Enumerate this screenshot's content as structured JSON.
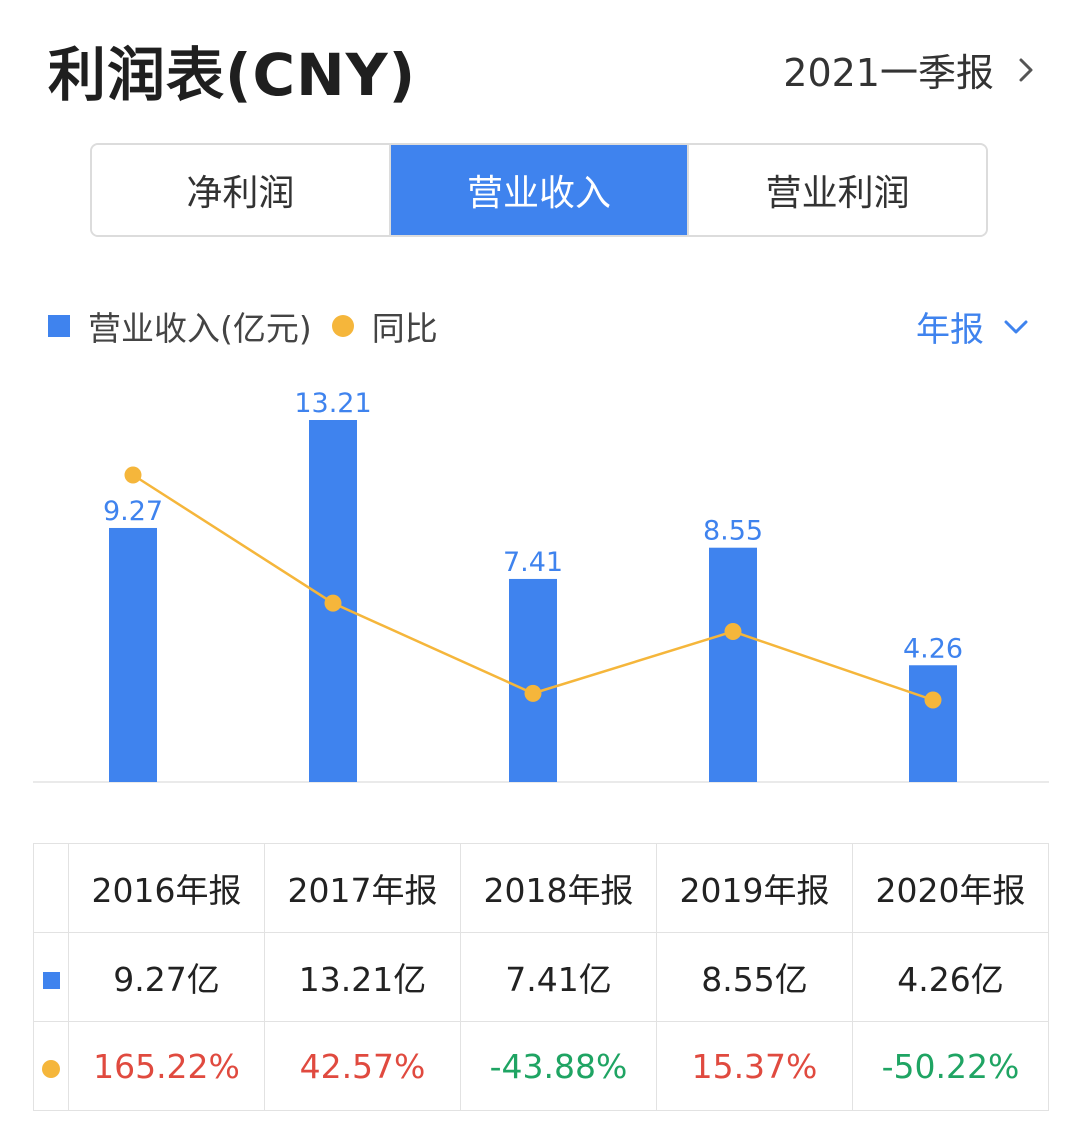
{
  "header": {
    "title": "利润表(CNY)",
    "period_label": "2021一季报"
  },
  "tabs": [
    {
      "label": "净利润",
      "active": false
    },
    {
      "label": "营业收入",
      "active": true
    },
    {
      "label": "营业利润",
      "active": false
    }
  ],
  "legend": {
    "revenue_label": "营业收入(亿元)",
    "yoy_label": "同比"
  },
  "select": {
    "label": "年报"
  },
  "colors": {
    "bar": "#3f83ee",
    "line": "#f5b63b",
    "positive": "#e04a3f",
    "negative": "#1fa463"
  },
  "chart_data": {
    "type": "bar",
    "categories": [
      "2016年报",
      "2017年报",
      "2018年报",
      "2019年报",
      "2020年报"
    ],
    "series": [
      {
        "name": "营业收入(亿元)",
        "type": "bar",
        "values": [
          9.27,
          13.21,
          7.41,
          8.55,
          4.26
        ],
        "value_labels": [
          "9.27",
          "13.21",
          "7.41",
          "8.55",
          "4.26"
        ]
      },
      {
        "name": "同比",
        "type": "line",
        "values": [
          165.22,
          42.57,
          -43.88,
          15.37,
          -50.22
        ]
      }
    ],
    "title": "",
    "xlabel": "",
    "ylabel": "",
    "ylim": [
      0,
      14
    ],
    "legend_position": "top-left",
    "grid": false
  },
  "table": {
    "headers": [
      "2016年报",
      "2017年报",
      "2018年报",
      "2019年报",
      "2020年报"
    ],
    "revenue": [
      "9.27亿",
      "13.21亿",
      "7.41亿",
      "8.55亿",
      "4.26亿"
    ],
    "yoy": [
      "165.22%",
      "42.57%",
      "-43.88%",
      "15.37%",
      "-50.22%"
    ]
  }
}
